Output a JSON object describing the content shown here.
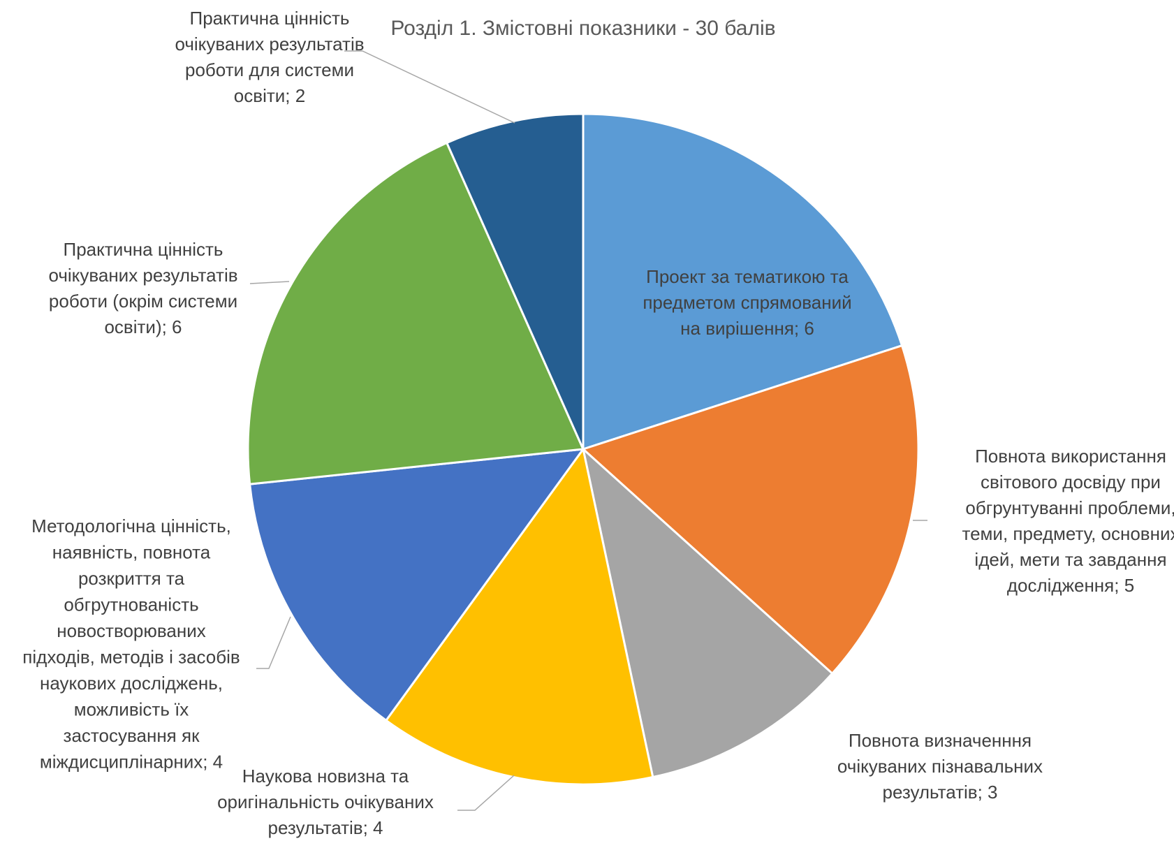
{
  "chart_data": {
    "type": "pie",
    "title": "Розділ 1. Змістовні показники - 30 балів",
    "slices": [
      {
        "lines": [
          "Проект за тематикою та",
          "предметом спрямований",
          "на вирішення; 6"
        ],
        "value": 6,
        "color": "#5B9BD5"
      },
      {
        "lines": [
          "Повнота використання",
          "світового досвіду при",
          "обгрунтуванні проблеми,",
          "теми, предмету, основних",
          "ідей, мети та завдання",
          "дослідження; 5"
        ],
        "value": 5,
        "color": "#ED7D31"
      },
      {
        "lines": [
          "Повнота визначенння",
          "очікуваних пізнавальних",
          "результатів; 3"
        ],
        "value": 3,
        "color": "#A5A5A5"
      },
      {
        "lines": [
          "Наукова новизна та",
          "оригінальність очікуваних",
          "результатів; 4"
        ],
        "value": 4,
        "color": "#FFC000"
      },
      {
        "lines": [
          "Методологічна цінність,",
          "наявність, повнота",
          "розкриття та",
          "обгрутнованість",
          "новостворюваних",
          "підходів, методів і засобів",
          "наукових досліджень,",
          "можливість їх",
          "застосування як",
          "міждисциплінарних; 4"
        ],
        "value": 4,
        "color": "#4472C4"
      },
      {
        "lines": [
          "Практична цінність",
          "очікуваних результатів",
          "роботи (окрім системи",
          "освіти); 6"
        ],
        "value": 6,
        "color": "#70AD47"
      },
      {
        "lines": [
          "Практична цінність",
          "очікуваних результатів",
          "роботи для системи",
          "освіти; 2"
        ],
        "value": 2,
        "color": "#255E91"
      }
    ]
  }
}
